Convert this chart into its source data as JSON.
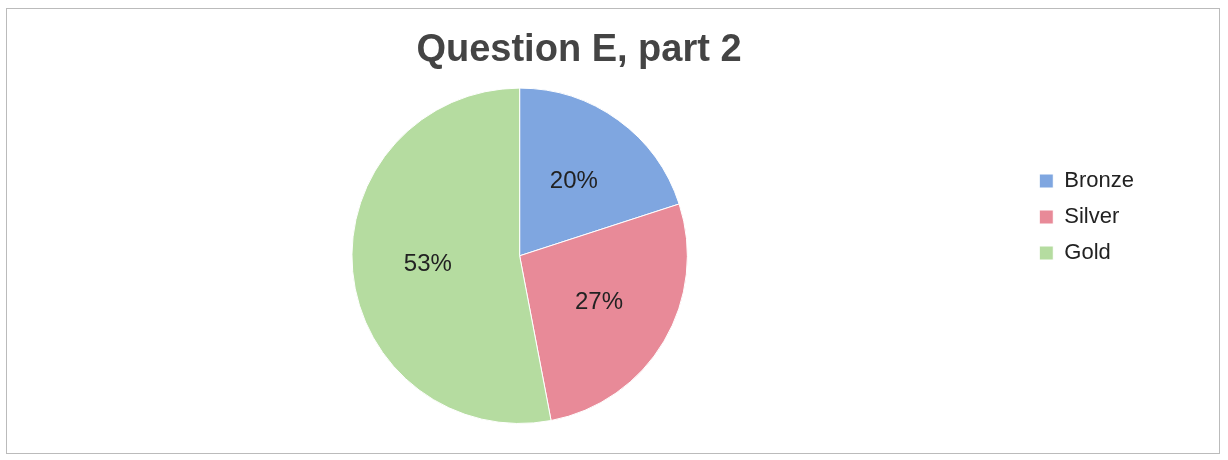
{
  "chart_data": {
    "type": "pie",
    "title": "Question E, part 2",
    "categories": [
      "Bronze",
      "Silver",
      "Gold"
    ],
    "values": [
      20,
      27,
      53
    ],
    "value_labels": [
      "20%",
      "27%",
      "53%"
    ],
    "colors": [
      "#7fa6e0",
      "#e88a98",
      "#b5dca0"
    ],
    "legend": "right"
  }
}
